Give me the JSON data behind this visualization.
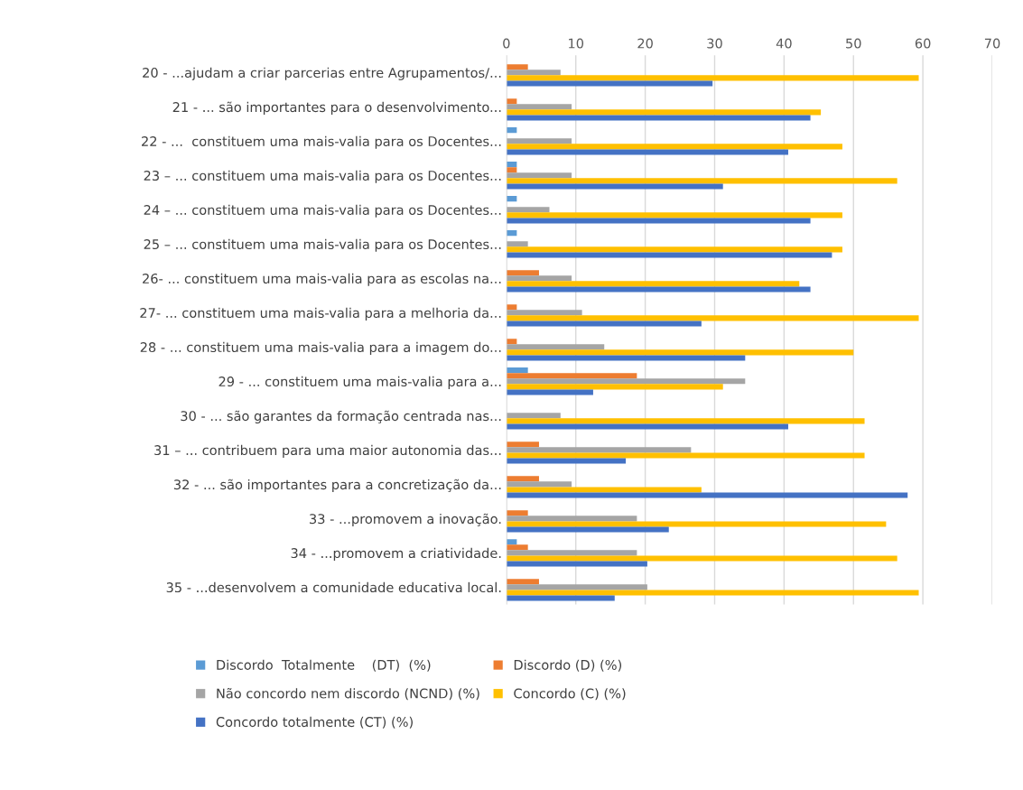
{
  "chart_data": {
    "type": "bar",
    "orientation": "horizontal",
    "categories": [
      "20 - ...ajudam a criar parcerias entre Agrupamentos/...",
      "21 - ... são importantes para o desenvolvimento...",
      "22 - ...  constituem uma mais-valia para os Docentes...",
      "23 – ... constituem uma mais-valia para os Docentes...",
      "24 – ... constituem uma mais-valia para os Docentes...",
      "25 – ... constituem uma mais-valia para os Docentes...",
      "26- ... constituem uma mais-valia para as escolas na...",
      "27- ... constituem uma mais-valia para a melhoria da...",
      "28 - ... constituem uma mais-valia para a imagem do...",
      "29 - ... constituem uma mais-valia para a...",
      "30 - ... são garantes da formação centrada nas...",
      "31 – ... contribuem para uma maior autonomia das...",
      "32 - ... são importantes para a concretização da...",
      "33 - ...promovem a inovação.",
      "34 - ...promovem a criatividade.",
      "35 - ...desenvolvem a comunidade educativa local."
    ],
    "series": [
      {
        "name": "Discordo  Totalmente    (DT)  (%)",
        "color": "#5b9bd5",
        "values": [
          0,
          0,
          1.5,
          1.5,
          1.5,
          1.5,
          0,
          0,
          0,
          3.1,
          0,
          0,
          0,
          0,
          1.5,
          0
        ]
      },
      {
        "name": "Discordo (D) (%)",
        "color": "#ed7d31",
        "values": [
          3.1,
          1.5,
          0,
          1.5,
          0,
          0,
          4.7,
          1.5,
          1.5,
          18.8,
          0,
          4.7,
          4.7,
          3.1,
          3.1,
          4.7
        ]
      },
      {
        "name": "Não concordo nem discordo (NCND) (%)",
        "color": "#a5a5a5",
        "values": [
          7.8,
          9.4,
          9.4,
          9.4,
          6.2,
          3.1,
          9.4,
          10.9,
          14.1,
          34.4,
          7.8,
          26.6,
          9.4,
          18.8,
          18.8,
          20.3
        ]
      },
      {
        "name": "Concordo (C) (%)",
        "color": "#ffc000",
        "values": [
          59.4,
          45.3,
          48.4,
          56.3,
          48.4,
          48.4,
          42.2,
          59.4,
          50.0,
          31.2,
          51.6,
          51.6,
          28.1,
          54.7,
          56.3,
          59.4
        ]
      },
      {
        "name": "Concordo totalmente (CT) (%)",
        "color": "#4472c4",
        "values": [
          29.7,
          43.8,
          40.6,
          31.2,
          43.8,
          46.9,
          43.8,
          28.1,
          34.4,
          12.5,
          40.6,
          17.2,
          57.8,
          23.4,
          20.3,
          15.6
        ]
      }
    ],
    "xlim": [
      0,
      70
    ],
    "xticks": [
      0,
      10,
      20,
      30,
      40,
      50,
      60,
      70
    ],
    "grid": "x",
    "legend": "bottom"
  }
}
